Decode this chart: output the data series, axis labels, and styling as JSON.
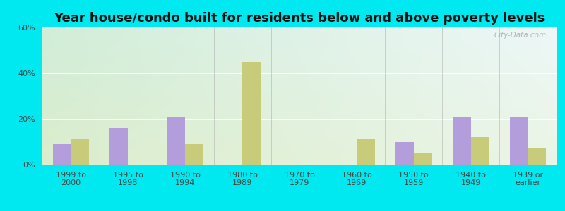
{
  "title": "Year house/condo built for residents below and above poverty levels",
  "categories": [
    "1999 to\n2000",
    "1995 to\n1998",
    "1990 to\n1994",
    "1980 to\n1989",
    "1970 to\n1979",
    "1960 to\n1969",
    "1950 to\n1959",
    "1940 to\n1949",
    "1939 or\nearlier"
  ],
  "below_poverty": [
    9,
    16,
    21,
    0,
    0,
    0,
    10,
    21,
    21
  ],
  "above_poverty": [
    11,
    0,
    9,
    45,
    0,
    11,
    5,
    12,
    7
  ],
  "below_color": "#b39ddb",
  "above_color": "#c8cc7a",
  "ylim": [
    0,
    60
  ],
  "yticks": [
    0,
    20,
    40,
    60
  ],
  "ytick_labels": [
    "0%",
    "20%",
    "40%",
    "60%"
  ],
  "outer_bg": "#00e8f0",
  "bar_width": 0.32,
  "watermark": "City-Data.com",
  "title_fontsize": 13,
  "tick_fontsize": 8
}
